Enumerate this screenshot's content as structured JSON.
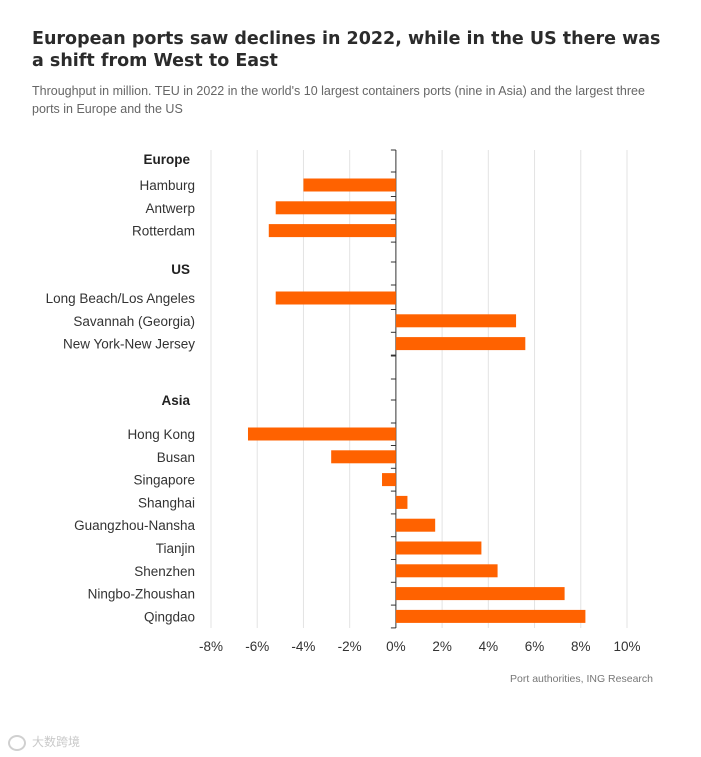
{
  "title": "European ports saw declines in 2022, while in the US there was a shift from West to East",
  "subtitle": "Throughput in million. TEU in 2022 in the world's 10 largest containers ports (nine in Asia) and the largest three ports in Europe and the US",
  "source": "Port authorities, ING Research",
  "watermark": "大数跨境",
  "colors": {
    "bar": "#ff6200",
    "grid": "#e3e3e3",
    "axis": "#333333"
  },
  "chart_data": {
    "type": "bar",
    "orientation": "horizontal",
    "groups": [
      {
        "name": "Europe",
        "items": [
          {
            "label": "Hamburg",
            "value": -4.0
          },
          {
            "label": "Antwerp",
            "value": -5.2
          },
          {
            "label": "Rotterdam",
            "value": -5.5
          }
        ]
      },
      {
        "name": "US",
        "items": [
          {
            "label": "Long Beach/Los Angeles",
            "value": -5.2
          },
          {
            "label": "Savannah (Georgia)",
            "value": 5.2
          },
          {
            "label": "New York-New Jersey",
            "value": 5.6
          }
        ]
      },
      {
        "name": "Asia",
        "items": [
          {
            "label": "Hong Kong",
            "value": -6.4
          },
          {
            "label": "Busan",
            "value": -2.8
          },
          {
            "label": "Singapore",
            "value": -0.6
          },
          {
            "label": "Shanghai",
            "value": 0.5
          },
          {
            "label": "Guangzhou-Nansha",
            "value": 1.7
          },
          {
            "label": "Tianjin",
            "value": 3.7
          },
          {
            "label": "Shenzhen",
            "value": 4.4
          },
          {
            "label": "Ningbo-Zhoushan",
            "value": 7.3
          },
          {
            "label": "Qingdao",
            "value": 8.2
          }
        ]
      }
    ],
    "xlim": [
      -8,
      10
    ],
    "xticks": [
      -8,
      -6,
      -4,
      -2,
      0,
      2,
      4,
      6,
      8,
      10
    ],
    "xtick_labels": [
      "-8%",
      "-6%",
      "-4%",
      "-2%",
      "0%",
      "2%",
      "4%",
      "6%",
      "8%",
      "10%"
    ],
    "grid": true,
    "legend": "none"
  }
}
